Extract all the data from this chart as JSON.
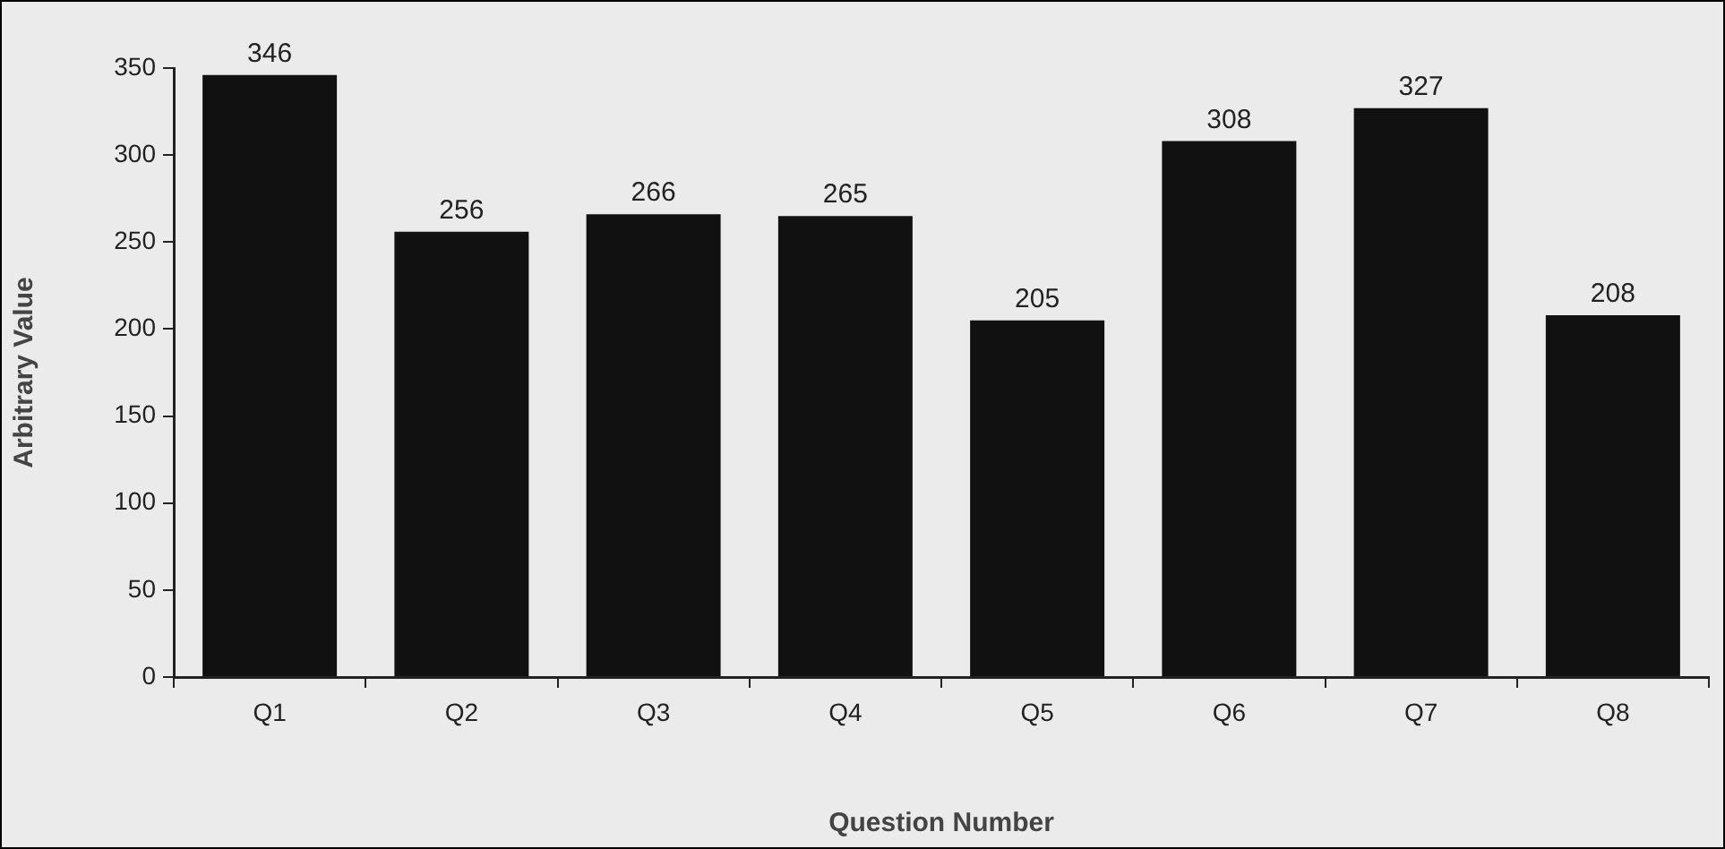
{
  "chart_data": {
    "type": "bar",
    "xlabel": "Question Number",
    "ylabel": "Arbitrary Value",
    "categories": [
      "Q1",
      "Q2",
      "Q3",
      "Q4",
      "Q5",
      "Q6",
      "Q7",
      "Q8"
    ],
    "values": [
      346,
      256,
      266,
      265,
      205,
      308,
      327,
      208
    ],
    "color": "#111111",
    "ylim": [
      0,
      350
    ],
    "yticks": [
      0,
      50,
      100,
      150,
      200,
      250,
      300,
      350
    ],
    "grid": false,
    "legend": false,
    "data_labels": true
  }
}
